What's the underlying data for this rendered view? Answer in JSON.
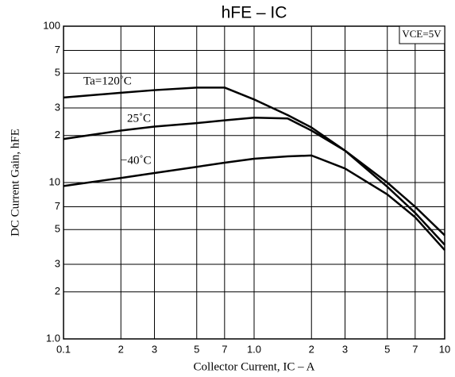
{
  "chart_data": {
    "type": "line",
    "title": "hFE  –  IC",
    "x_label": "Collector Current, IC  –  A",
    "y_label": "DC Current Gain, hFE",
    "annotation": "VCE=5V",
    "log_x": true,
    "log_y": true,
    "grid": true,
    "x": [
      0.1,
      0.2,
      0.3,
      0.5,
      0.7,
      1,
      1.5,
      2,
      3,
      5,
      7,
      10
    ],
    "series": [
      {
        "name": "Ta=120˚C",
        "color": "#000000",
        "values": [
          35,
          37.5,
          39,
          40.5,
          40.5,
          34,
          27,
          22.5,
          16,
          10,
          7,
          4.6
        ]
      },
      {
        "name": "25˚C",
        "color": "#000000",
        "values": [
          19,
          21.5,
          22.8,
          24,
          25,
          26,
          25.7,
          21.5,
          16,
          9.4,
          6.4,
          4.0
        ]
      },
      {
        "name": "−40˚C",
        "color": "#000000",
        "values": [
          9.5,
          10.7,
          11.5,
          12.6,
          13.4,
          14.2,
          14.7,
          14.9,
          12.3,
          8.4,
          6.0,
          3.7
        ]
      }
    ],
    "xlim": [
      0.1,
      10
    ],
    "ylim": [
      1,
      100
    ],
    "xticks": [
      0.1,
      {
        "value": 0.2,
        "label": "2"
      },
      {
        "value": 0.3,
        "label": "3"
      },
      {
        "value": 0.5,
        "label": "5"
      },
      {
        "value": 0.7,
        "label": "7"
      },
      {
        "value": 1,
        "label": "1.0"
      },
      2,
      3,
      5,
      7,
      10
    ],
    "yticks": [
      {
        "value": 1,
        "label": "1.0"
      },
      2,
      3,
      5,
      7,
      10,
      {
        "value": 20,
        "label": "2"
      },
      {
        "value": 30,
        "label": "3"
      },
      {
        "value": 50,
        "label": "5"
      },
      {
        "value": 70,
        "label": "7"
      },
      100
    ]
  }
}
